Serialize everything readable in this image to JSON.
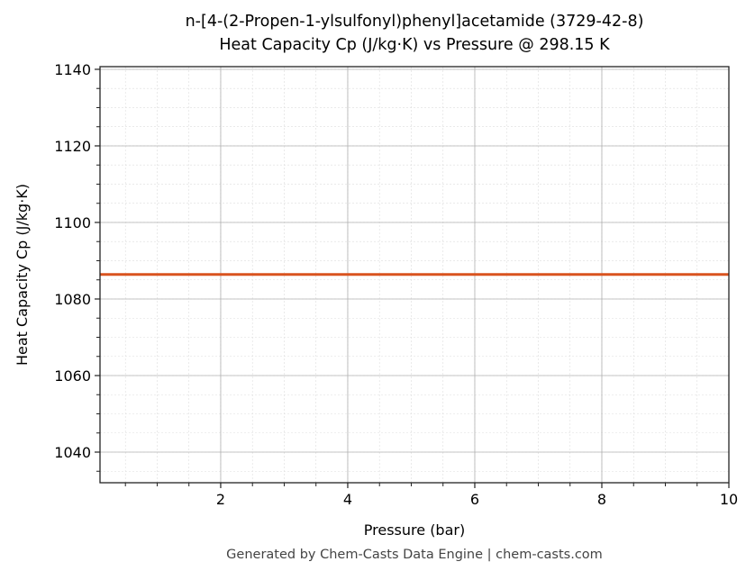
{
  "chart_data": {
    "type": "line",
    "title": "n-[4-(2-Propen-1-ylsulfonyl)phenyl]acetamide (3729-42-8)",
    "subtitle": "Heat Capacity Cp (J/kg·K) vs Pressure @ 298.15 K",
    "xlabel": "Pressure (bar)",
    "ylabel": "Heat Capacity Cp (J/kg·K)",
    "xlim": [
      0.1,
      10
    ],
    "ylim": [
      1032,
      1140.7
    ],
    "xticks": [
      2,
      4,
      6,
      8,
      10
    ],
    "yticks": [
      1040,
      1060,
      1080,
      1100,
      1120,
      1140
    ],
    "x_minor_step": 0.5,
    "y_minor_step": 5,
    "grid": true,
    "series": [
      {
        "x": [
          0.1,
          10
        ],
        "y": [
          1086.4,
          1086.4
        ],
        "color": "#d9531e"
      }
    ]
  },
  "footer": "Generated by Chem-Casts Data Engine | chem-casts.com"
}
